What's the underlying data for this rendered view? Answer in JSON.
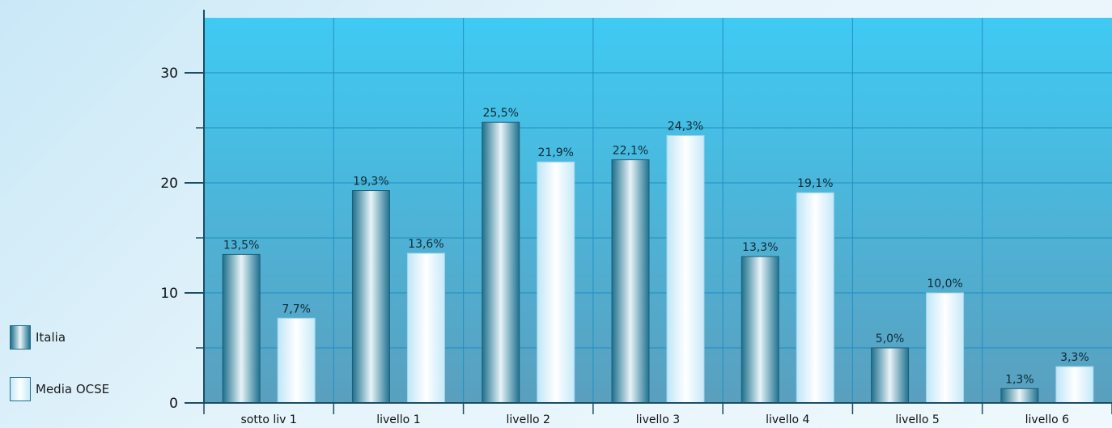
{
  "chart_data": {
    "type": "bar",
    "title": "",
    "xlabel": "",
    "ylabel": "",
    "categories": [
      "sotto liv 1",
      "livello 1",
      "livello 2",
      "livello 3",
      "livello 4",
      "livello 5",
      "livello 6"
    ],
    "series": [
      {
        "name": "Italia",
        "values": [
          13.5,
          19.3,
          25.5,
          22.1,
          13.3,
          5.0,
          1.3
        ],
        "labels": [
          "13,5%",
          "19,3%",
          "25,5%",
          "22,1%",
          "13,3%",
          "5,0%",
          "1,3%"
        ],
        "color": "#2a7f9c"
      },
      {
        "name": "Media OCSE",
        "values": [
          7.7,
          13.6,
          21.9,
          24.3,
          19.1,
          10.0,
          3.3
        ],
        "labels": [
          "7,7%",
          "13,6%",
          "21,9%",
          "24,3%",
          "19,1%",
          "10,0%",
          "3,3%"
        ],
        "color": "#dff3fd"
      }
    ],
    "ylim": [
      0,
      35
    ],
    "yticks": [
      0,
      10,
      20,
      30
    ],
    "ytick_labels": [
      "0",
      "10",
      "20",
      "30"
    ],
    "grid": true,
    "legend_position": "bottom-left",
    "background_colors": [
      "#3cc8f2",
      "#5aa6c4"
    ]
  }
}
